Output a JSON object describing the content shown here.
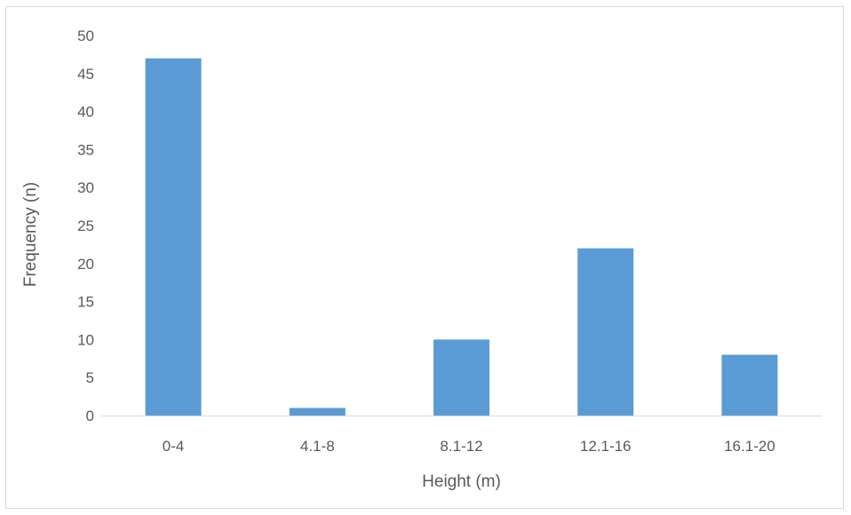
{
  "chart_data": {
    "type": "bar",
    "title": "",
    "xlabel": "Height (m)",
    "ylabel": "Frequency (n)",
    "categories": [
      "0-4",
      "4.1-8",
      "8.1-12",
      "12.1-16",
      "16.1-20"
    ],
    "values": [
      47,
      1,
      10,
      22,
      8
    ],
    "ylim": [
      0,
      50
    ],
    "yticks": [
      "0",
      "5",
      "10",
      "15",
      "20",
      "25",
      "30",
      "35",
      "40",
      "45",
      "50"
    ],
    "grid": false,
    "legend": "none",
    "bar_color": "#5b9bd5",
    "axis_color": "#d9d9d9",
    "text_color": "#595959"
  }
}
